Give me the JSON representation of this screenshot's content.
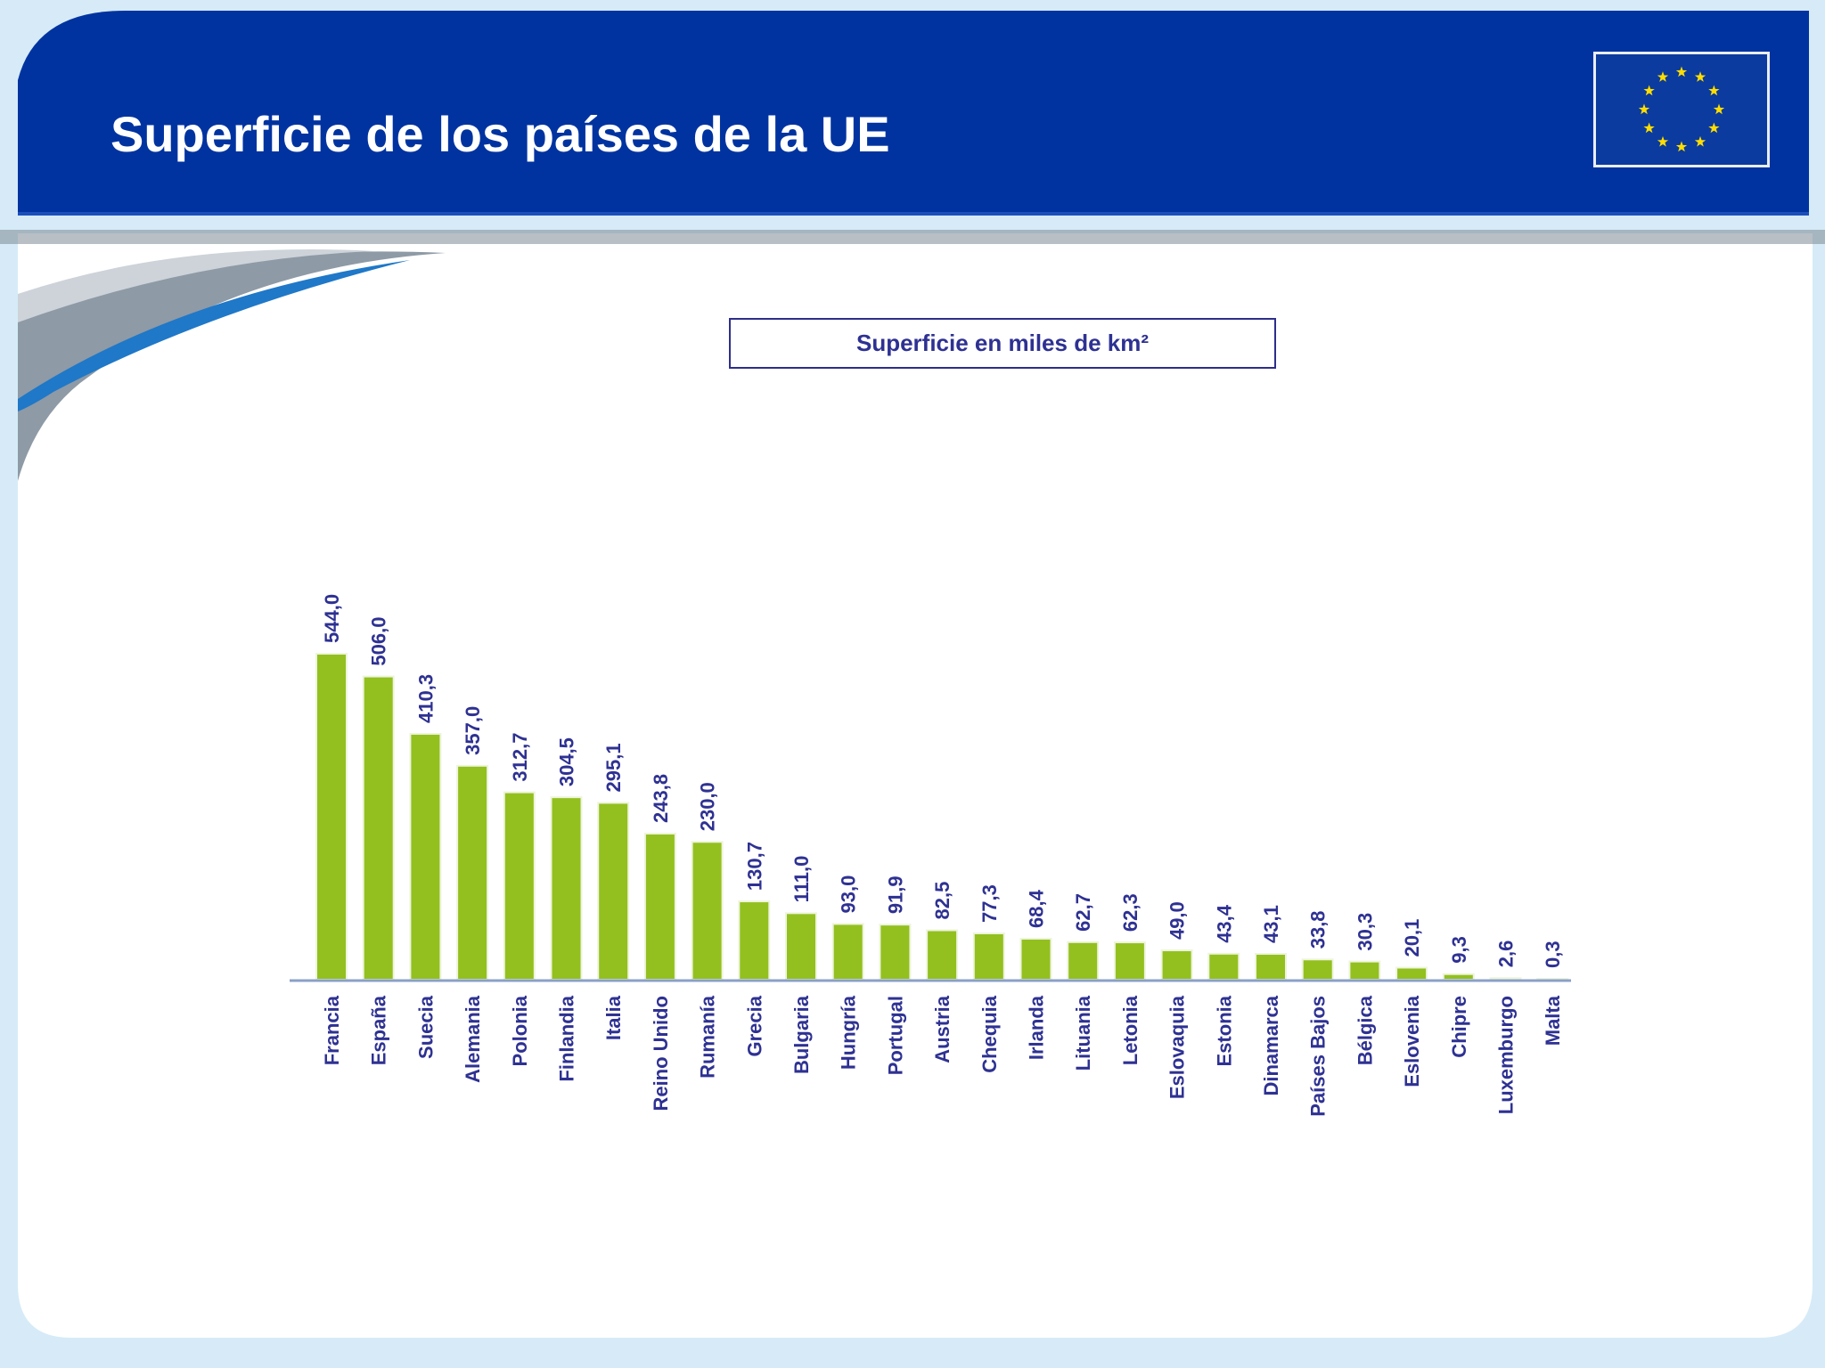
{
  "header": {
    "title": "Superficie de los países de la UE",
    "background_color": "#0033a0",
    "flag_icon": "eu-flag-icon"
  },
  "chart_data": {
    "type": "bar",
    "title": "Superficie en miles de km²",
    "xlabel": "",
    "ylabel": "",
    "categories": [
      "Francia",
      "España",
      "Suecia",
      "Alemania",
      "Polonia",
      "Finlandia",
      "Italia",
      "Reino Unido",
      "Rumanía",
      "Grecia",
      "Bulgaria",
      "Hungría",
      "Portugal",
      "Austria",
      "Chequia",
      "Irlanda",
      "Lituania",
      "Letonia",
      "Eslovaquia",
      "Estonia",
      "Dinamarca",
      "Países  Bajos",
      "Bélgica",
      "Eslovenia",
      "Chipre",
      "Luxemburgo",
      "Malta"
    ],
    "values": [
      544.0,
      506.0,
      410.3,
      357.0,
      312.7,
      304.5,
      295.1,
      243.8,
      230.0,
      130.7,
      111.0,
      93.0,
      91.9,
      82.5,
      77.3,
      68.4,
      62.7,
      62.3,
      49.0,
      43.4,
      43.1,
      33.8,
      30.3,
      20.1,
      9.3,
      2.6,
      0.3
    ],
    "value_labels": [
      "544,0",
      "506,0",
      "410,3",
      "357,0",
      "312,7",
      "304,5",
      "295,1",
      "243,8",
      "230,0",
      "130,7",
      "111,0",
      "93,0",
      "91,9",
      "82,5",
      "77,3",
      "68,4",
      "62,7",
      "62,3",
      "49,0",
      "43,4",
      "43,1",
      "33,8",
      "30,3",
      "20,1",
      "9,3",
      "2,6",
      "0,3"
    ],
    "ylim": [
      0,
      544
    ],
    "grid": false,
    "legend": "none",
    "bar_color": "#93c01f",
    "label_color": "#2e3192"
  }
}
